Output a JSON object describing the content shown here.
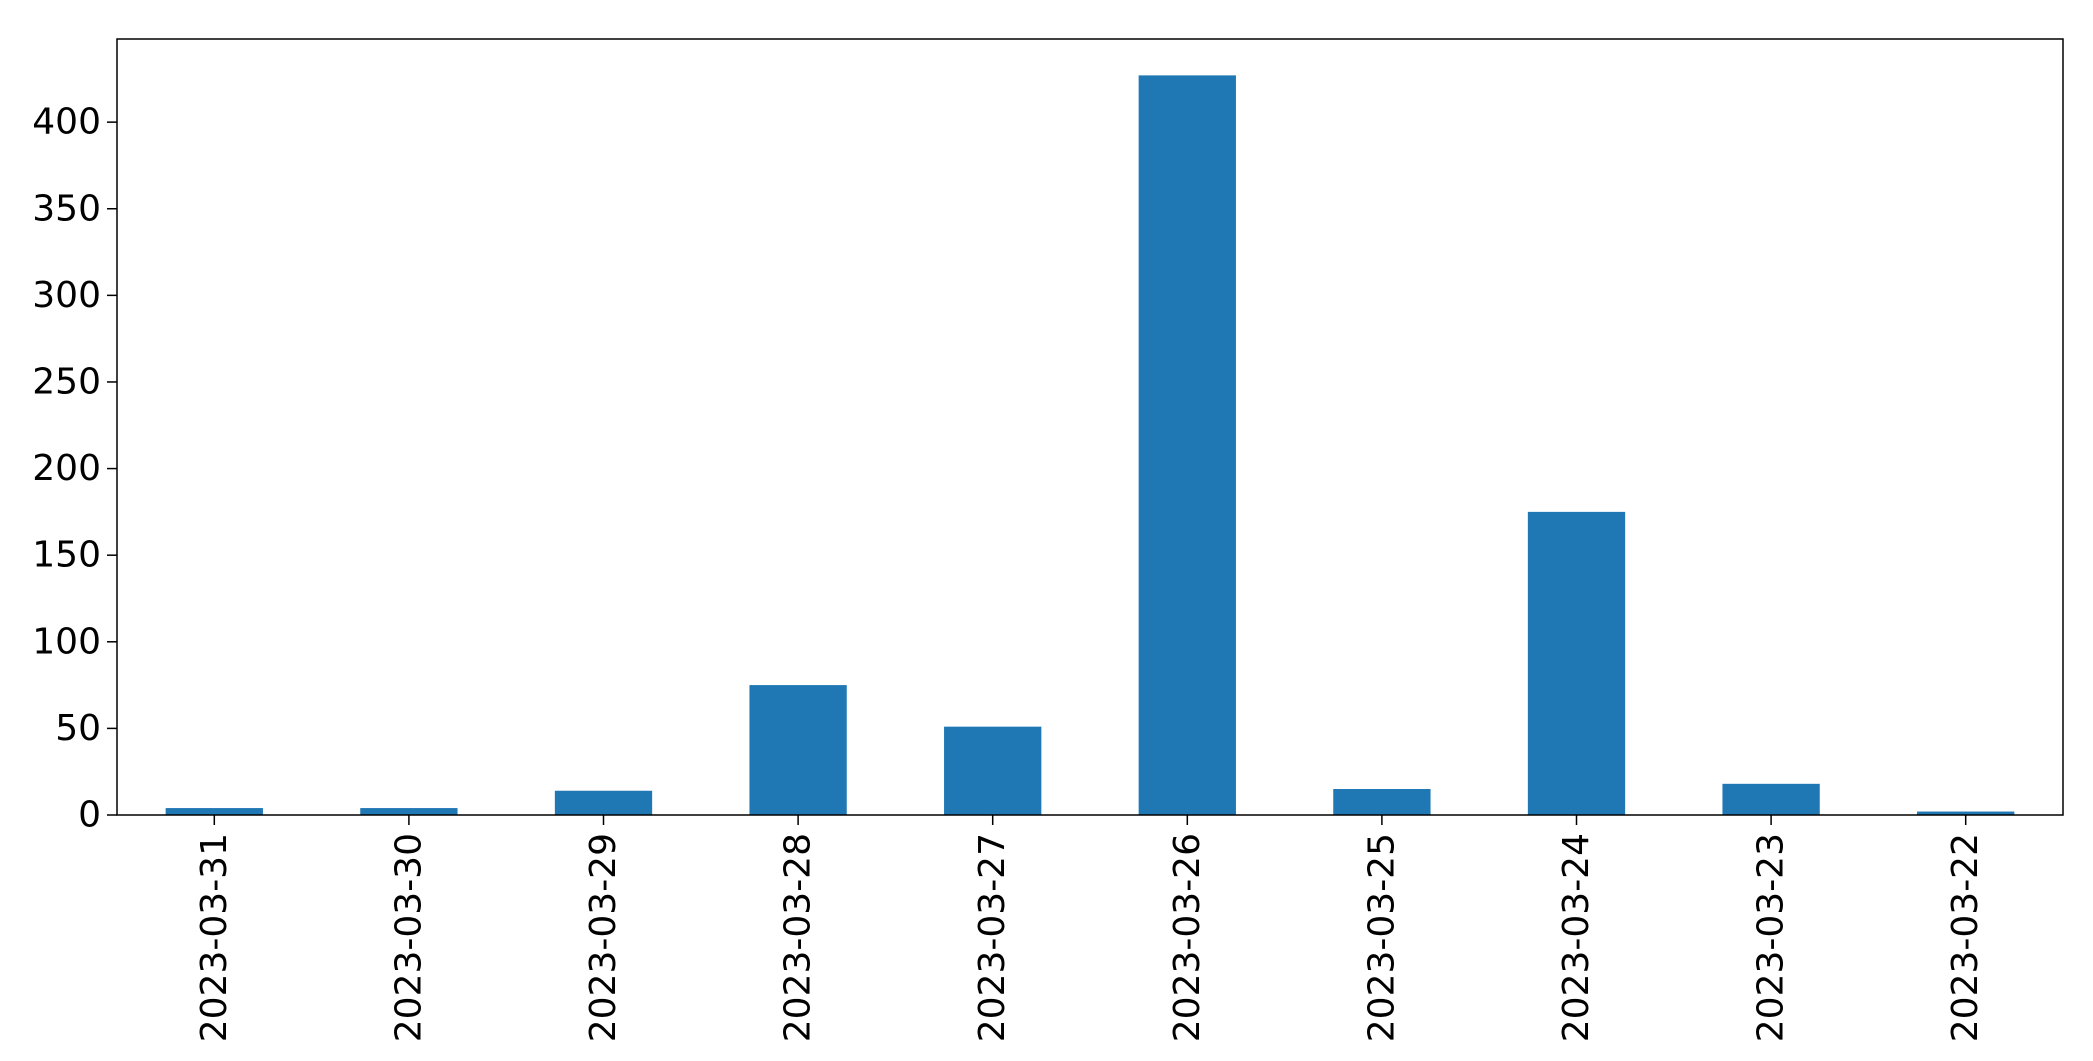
{
  "chart_data": {
    "type": "bar",
    "title": "",
    "xlabel": "",
    "ylabel": "",
    "categories": [
      "2023-03-31",
      "2023-03-30",
      "2023-03-29",
      "2023-03-28",
      "2023-03-27",
      "2023-03-26",
      "2023-03-25",
      "2023-03-24",
      "2023-03-23",
      "2023-03-22"
    ],
    "values": [
      4,
      4,
      14,
      75,
      51,
      427,
      15,
      175,
      18,
      2
    ],
    "ylim": [
      0,
      448
    ],
    "yticks": [
      0,
      50,
      100,
      150,
      200,
      250,
      300,
      350,
      400
    ],
    "ytick_labels": [
      "0",
      "50",
      "100",
      "150",
      "200",
      "250",
      "300",
      "350",
      "400"
    ],
    "bar_color": "#1f77b4",
    "grid": false,
    "legend": "none"
  }
}
